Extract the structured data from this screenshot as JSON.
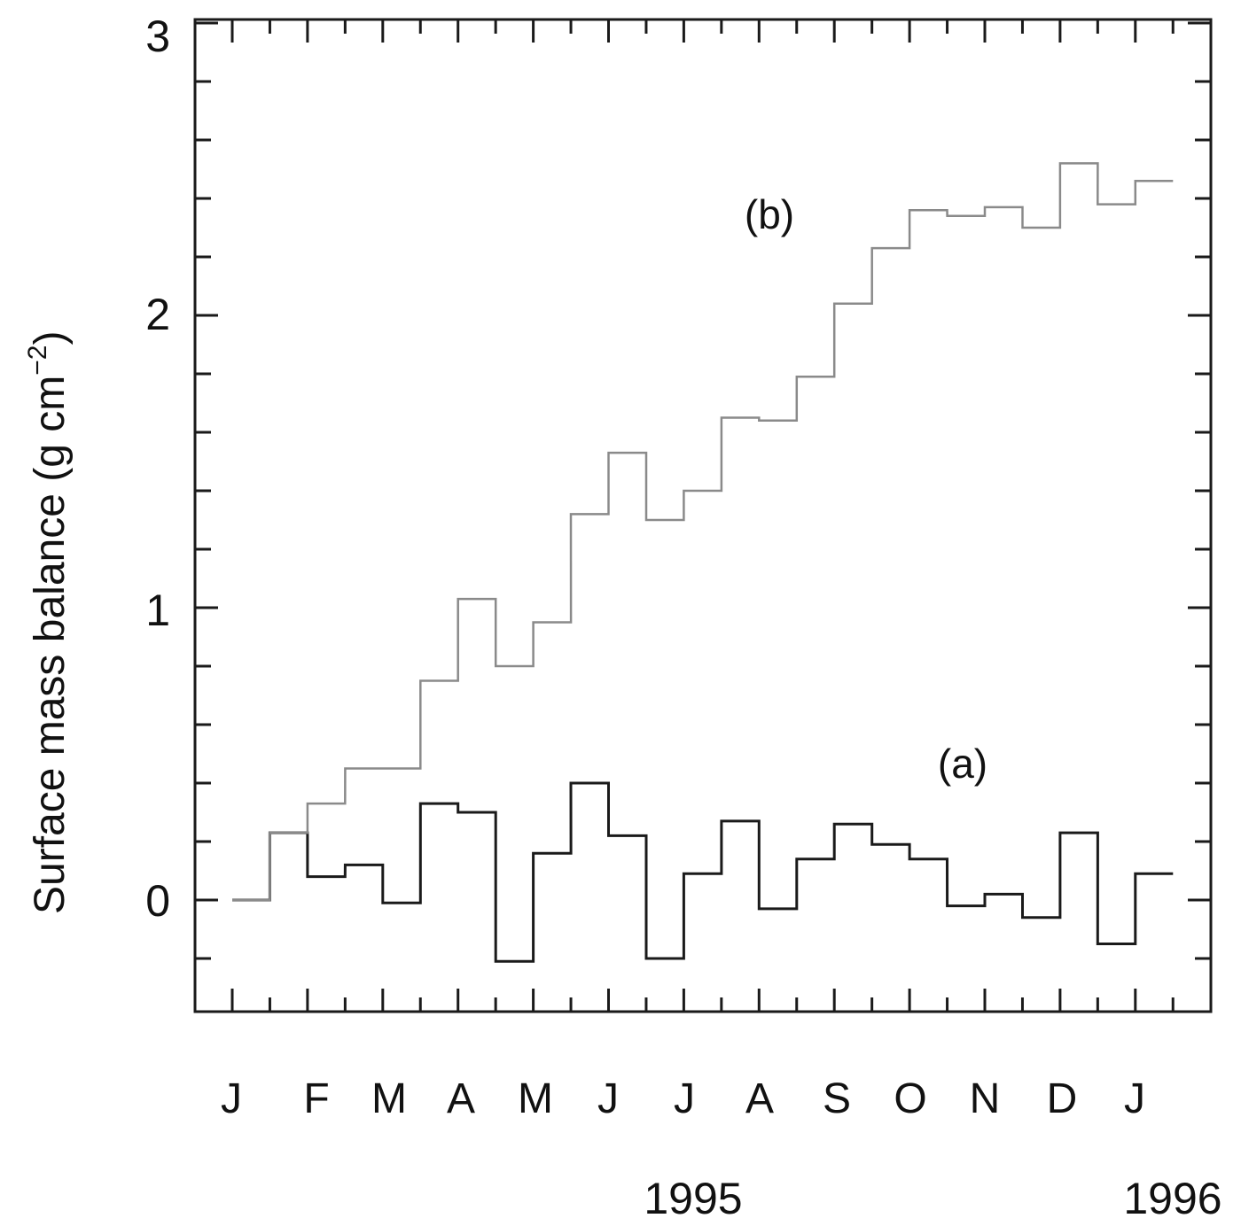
{
  "chart_data": {
    "type": "line",
    "step": true,
    "xlabel": "",
    "ylabel": "Surface mass balance (g cm",
    "ylabel_superscript": "−2",
    "ylabel_suffix": ")",
    "ylim": [
      -0.38,
      3.0
    ],
    "yticks": [
      "0",
      "1",
      "2",
      "3"
    ],
    "ytick_values": [
      0,
      1,
      2,
      3
    ],
    "month_labels": [
      "J",
      "F",
      "M",
      "A",
      "M",
      "J",
      "J",
      "A",
      "S",
      "O",
      "N",
      "D",
      "J"
    ],
    "year_labels": [
      "1995",
      "1996"
    ],
    "grid": false,
    "series": [
      {
        "name": "(a)",
        "color": "#1a1a1a",
        "values": [
          0.0,
          0.23,
          0.08,
          0.12,
          -0.01,
          0.33,
          0.3,
          -0.21,
          0.16,
          0.4,
          0.22,
          -0.2,
          0.09,
          0.27,
          -0.03,
          0.14,
          0.26,
          0.19,
          0.14,
          -0.02,
          0.02,
          -0.06,
          0.23,
          -0.15,
          0.09
        ]
      },
      {
        "name": "(b)",
        "color": "#8a8a8a",
        "values": [
          0.0,
          0.23,
          0.33,
          0.45,
          0.45,
          0.75,
          1.03,
          0.8,
          0.95,
          1.32,
          1.53,
          1.3,
          1.4,
          1.65,
          1.64,
          1.79,
          2.04,
          2.23,
          2.36,
          2.34,
          2.37,
          2.3,
          2.52,
          2.38,
          2.46
        ]
      }
    ]
  }
}
